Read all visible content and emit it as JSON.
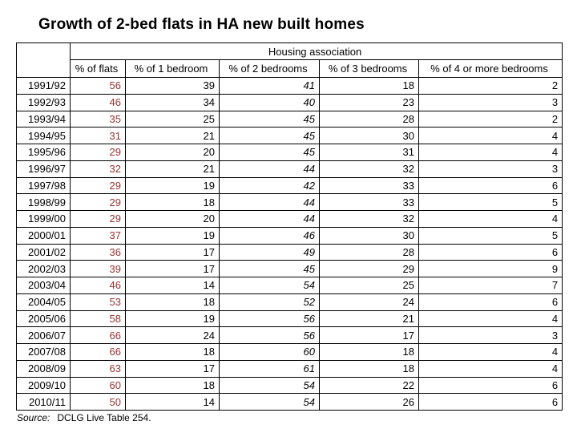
{
  "page": {
    "title": "Growth of 2-bed flats in HA new built homes",
    "source": {
      "label": "Source:",
      "text": "DCLG Live Table 254."
    }
  },
  "colors": {
    "flats_column_text": "#993333",
    "text": "#000000",
    "border": "#000000",
    "background": "#ffffff"
  },
  "chart_data": {
    "type": "table",
    "title": "Growth of 2-bed flats in HA new built homes",
    "group_header": "Housing association",
    "columns": [
      "% of flats",
      "% of 1 bedroom",
      "% of 2 bedrooms",
      "% of 3 bedrooms",
      "% of 4 or more bedrooms"
    ],
    "years": [
      "1991/92",
      "1992/93",
      "1993/94",
      "1994/95",
      "1995/96",
      "1996/97",
      "1997/98",
      "1998/99",
      "1999/00",
      "2000/01",
      "2001/02",
      "2002/03",
      "2003/04",
      "2004/05",
      "2005/06",
      "2006/07",
      "2007/08",
      "2008/09",
      "2009/10",
      "2010/11"
    ],
    "rows": [
      [
        56,
        39,
        41,
        18,
        2
      ],
      [
        46,
        34,
        40,
        23,
        3
      ],
      [
        35,
        25,
        45,
        28,
        2
      ],
      [
        31,
        21,
        45,
        30,
        4
      ],
      [
        29,
        20,
        45,
        31,
        4
      ],
      [
        32,
        21,
        44,
        32,
        3
      ],
      [
        29,
        19,
        42,
        33,
        6
      ],
      [
        29,
        18,
        44,
        33,
        5
      ],
      [
        29,
        20,
        44,
        32,
        4
      ],
      [
        37,
        19,
        46,
        30,
        5
      ],
      [
        36,
        17,
        49,
        28,
        6
      ],
      [
        39,
        17,
        45,
        29,
        9
      ],
      [
        46,
        14,
        54,
        25,
        7
      ],
      [
        53,
        18,
        52,
        24,
        6
      ],
      [
        58,
        19,
        56,
        21,
        4
      ],
      [
        66,
        24,
        56,
        17,
        3
      ],
      [
        66,
        18,
        60,
        18,
        4
      ],
      [
        63,
        17,
        61,
        18,
        4
      ],
      [
        60,
        18,
        54,
        22,
        6
      ],
      [
        50,
        14,
        54,
        26,
        6
      ]
    ]
  }
}
